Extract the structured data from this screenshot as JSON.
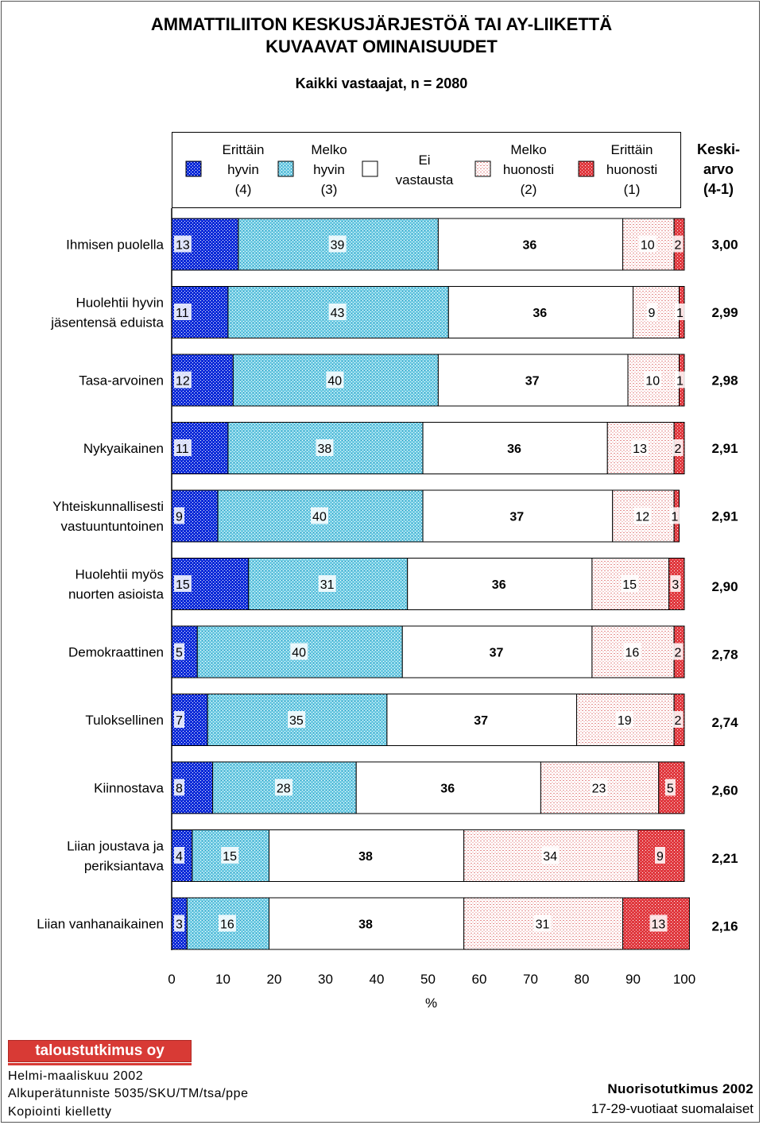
{
  "title_line1": "AMMATTILIITON KESKUSJÄRJESTÖÄ TAI AY-LIIKETTÄ",
  "title_line2": "KUVAAVAT OMINAISUUDET",
  "subtitle": "Kaikki vastaajat, n = 2080",
  "legend": [
    {
      "lines": [
        "Erittäin",
        "hyvin",
        "(4)"
      ],
      "pattern": "p0"
    },
    {
      "lines": [
        "Melko",
        "hyvin",
        "(3)"
      ],
      "pattern": "p1"
    },
    {
      "lines": [
        "Ei",
        "vastausta"
      ],
      "pattern": "p2"
    },
    {
      "lines": [
        "Melko",
        "huonosti",
        "(2)"
      ],
      "pattern": "p3"
    },
    {
      "lines": [
        "Erittäin",
        "huonosti",
        "(1)"
      ],
      "pattern": "p4"
    }
  ],
  "mean_header": [
    "Keski-",
    "arvo",
    "(4-1)"
  ],
  "colors": {
    "very_good": "#0a2ad8",
    "fairly_good": "#6fcbe3",
    "no_answer": "#ffffff",
    "fairly_poor": "#f3c4c4",
    "very_poor": "#e0383e"
  },
  "chart_data": {
    "type": "bar",
    "orientation": "horizontal",
    "stacked": true,
    "title": "AMMATTILIITON KESKUSJÄRJESTÖÄ TAI AY-LIIKETTÄ KUVAAVAT OMINAISUUDET",
    "subtitle": "Kaikki vastaajat, n = 2080",
    "xlabel": "%",
    "xlim": [
      0,
      100
    ],
    "xticks": [
      0,
      10,
      20,
      30,
      40,
      50,
      60,
      70,
      80,
      90,
      100
    ],
    "categories": [
      [
        "Ihmisen puolella"
      ],
      [
        "Huolehtii hyvin",
        "jäsentensä eduista"
      ],
      [
        "Tasa-arvoinen"
      ],
      [
        "Nykyaikainen"
      ],
      [
        "Yhteiskunnallisesti",
        "vastuuntuntoinen"
      ],
      [
        "Huolehtii myös",
        "nuorten asioista"
      ],
      [
        "Demokraattinen"
      ],
      [
        "Tuloksellinen"
      ],
      [
        "Kiinnostava"
      ],
      [
        "Liian joustava ja",
        "periksiantava"
      ],
      [
        "Liian vanhanaikainen"
      ]
    ],
    "series": [
      {
        "name": "Erittäin hyvin (4)",
        "values": [
          13,
          11,
          12,
          11,
          9,
          15,
          5,
          7,
          8,
          4,
          3
        ]
      },
      {
        "name": "Melko hyvin (3)",
        "values": [
          39,
          43,
          40,
          38,
          40,
          31,
          40,
          35,
          28,
          15,
          16
        ]
      },
      {
        "name": "Ei vastausta",
        "values": [
          36,
          36,
          37,
          36,
          37,
          36,
          37,
          37,
          36,
          38,
          38
        ]
      },
      {
        "name": "Melko huonosti (2)",
        "values": [
          10,
          9,
          10,
          13,
          12,
          15,
          16,
          19,
          23,
          34,
          31
        ]
      },
      {
        "name": "Erittäin huonosti (1)",
        "values": [
          2,
          1,
          1,
          2,
          1,
          3,
          2,
          2,
          5,
          9,
          13
        ]
      }
    ],
    "means": [
      "3,00",
      "2,99",
      "2,98",
      "2,91",
      "2,91",
      "2,90",
      "2,78",
      "2,74",
      "2,60",
      "2,21",
      "2,16"
    ]
  },
  "footer": {
    "logo": "taloustutkimus oy",
    "left": [
      "Helmi-maaliskuu 2002",
      "Alkuperätunniste 5035/SKU/TM/tsa/ppe",
      "Kopiointi kielletty"
    ],
    "right": [
      "Nuorisotutkimus 2002",
      "17-29-vuotiaat suomalaiset"
    ]
  }
}
